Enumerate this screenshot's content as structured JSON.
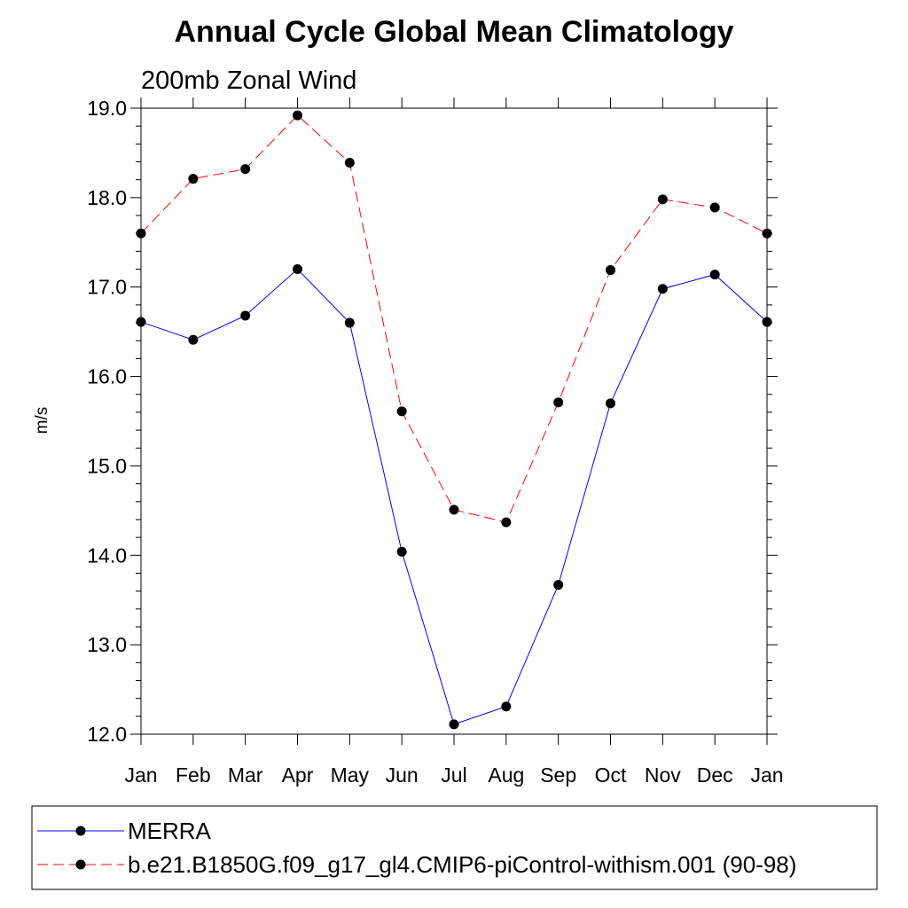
{
  "chart_data": {
    "type": "line",
    "title": "Annual Cycle Global Mean Climatology",
    "subtitle": "200mb Zonal Wind",
    "xlabel": "",
    "ylabel": "m/s",
    "categories": [
      "Jan",
      "Feb",
      "Mar",
      "Apr",
      "May",
      "Jun",
      "Jul",
      "Aug",
      "Sep",
      "Oct",
      "Nov",
      "Dec",
      "Jan"
    ],
    "ylim": [
      12.0,
      19.0
    ],
    "yticks": [
      "12.0",
      "13.0",
      "14.0",
      "15.0",
      "16.0",
      "17.0",
      "18.0",
      "19.0"
    ],
    "grid": false,
    "legend_position": "bottom",
    "series": [
      {
        "name": "MERRA",
        "color": "#0000ff",
        "style": "solid",
        "marker": "circle",
        "values": [
          16.61,
          16.41,
          16.68,
          17.2,
          16.6,
          14.04,
          12.11,
          12.31,
          13.67,
          15.7,
          16.98,
          17.14,
          16.61
        ]
      },
      {
        "name": "b.e21.B1850G.f09_g17_gl4.CMIP6-piControl-withism.001 (90-98)",
        "color": "#ff0000",
        "style": "dashed",
        "marker": "circle",
        "values": [
          17.6,
          18.21,
          18.32,
          18.92,
          18.39,
          15.61,
          14.51,
          14.37,
          15.71,
          17.19,
          17.98,
          17.89,
          17.6
        ]
      }
    ]
  }
}
